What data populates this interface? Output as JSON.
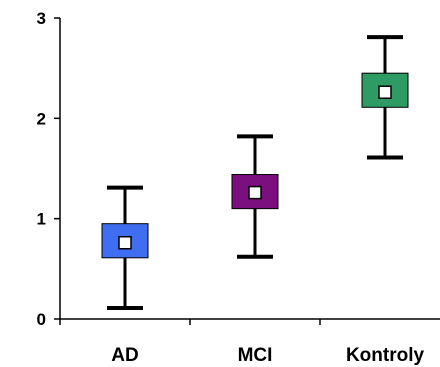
{
  "chart_data": {
    "type": "box",
    "title": "",
    "xlabel": "",
    "ylabel": "",
    "ylim": [
      0,
      3
    ],
    "yticks": [
      "0",
      "1",
      "2",
      "3"
    ],
    "grid": false,
    "categories": [
      "AD",
      "MCI",
      "Kontroly"
    ],
    "series": [
      {
        "category": "AD",
        "min": 0.11,
        "q1": 0.61,
        "median": 0.76,
        "q3": 0.95,
        "max": 1.31,
        "color": "#3f6ff0"
      },
      {
        "category": "MCI",
        "min": 0.62,
        "q1": 1.1,
        "median": 1.26,
        "q3": 1.44,
        "max": 1.82,
        "color": "#7b0f7f"
      },
      {
        "category": "Kontroly",
        "min": 1.61,
        "q1": 2.11,
        "median": 2.26,
        "q3": 2.45,
        "max": 2.81,
        "color": "#2e9a64"
      }
    ]
  }
}
